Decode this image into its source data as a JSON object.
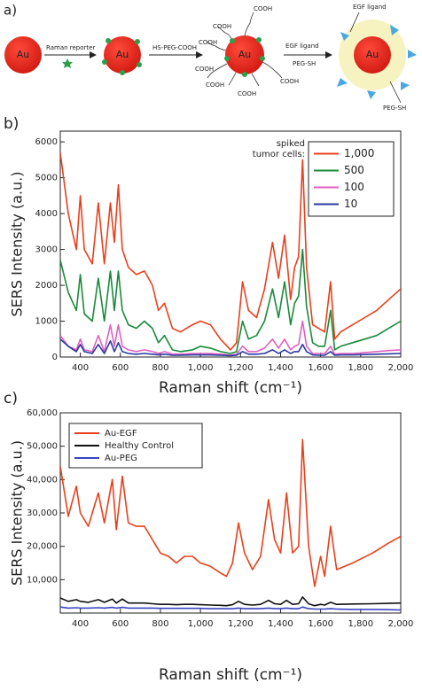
{
  "diagram": {
    "label": "a)",
    "core": "Au",
    "step1": "Raman reporter",
    "step2": "HS-PEG-COOH",
    "step3a": "EGF ligand",
    "step3b": "PEG-SH",
    "group": [
      "COOH",
      "COOH",
      "COOH",
      "COOH",
      "COOH",
      "COOH",
      "COOH"
    ],
    "ligand_label": "EGF ligand",
    "peg_label": "PEG-SH"
  },
  "chart_data": [
    {
      "type": "line",
      "label": "b)",
      "x_label": "Raman shift (cm⁻¹)",
      "y_label": "SERS Intensity (a.u.)",
      "annotation": [
        "spiked",
        "tumor cells:"
      ],
      "legend": "upper right",
      "xlim": [
        300,
        2000
      ],
      "ylim": [
        0,
        6300
      ],
      "xticks": [
        400,
        600,
        800,
        {
          "value": 1000,
          "label": "1,000"
        },
        {
          "value": 1200,
          "label": "1,200"
        },
        {
          "value": 1400,
          "label": "1,400"
        },
        {
          "value": 1600,
          "label": "1,600"
        },
        {
          "value": 1800,
          "label": "1,800"
        },
        {
          "value": 2000,
          "label": "2,000"
        }
      ],
      "yticks": [
        0,
        1000,
        2000,
        3000,
        4000,
        5000,
        6000
      ],
      "x": [
        300,
        340,
        380,
        400,
        420,
        460,
        490,
        520,
        550,
        570,
        590,
        610,
        640,
        680,
        720,
        760,
        790,
        820,
        860,
        900,
        960,
        1000,
        1050,
        1100,
        1150,
        1180,
        1210,
        1240,
        1280,
        1320,
        1360,
        1390,
        1420,
        1450,
        1470,
        1490,
        1510,
        1530,
        1560,
        1590,
        1620,
        1650,
        1670,
        1700,
        1760,
        1820,
        1880,
        1940,
        2000
      ],
      "series": [
        {
          "name": "1,000",
          "color": "#e8401c",
          "values": [
            5700,
            4000,
            3000,
            4500,
            3000,
            2600,
            4300,
            2600,
            4300,
            3200,
            4800,
            3000,
            2500,
            2300,
            2400,
            2000,
            1300,
            1500,
            800,
            700,
            900,
            1000,
            900,
            500,
            200,
            400,
            2100,
            1300,
            1100,
            1900,
            3200,
            2200,
            3400,
            1600,
            2500,
            2800,
            5500,
            2500,
            900,
            800,
            700,
            2100,
            500,
            700,
            900,
            1100,
            1300,
            1600,
            1900
          ]
        },
        {
          "name": "500",
          "color": "#1a8a3a",
          "values": [
            2700,
            1800,
            1300,
            2300,
            1200,
            1000,
            2200,
            1000,
            2400,
            1300,
            2400,
            1300,
            900,
            800,
            1000,
            800,
            400,
            600,
            200,
            150,
            200,
            300,
            250,
            150,
            100,
            150,
            1000,
            500,
            600,
            1000,
            1900,
            1100,
            2100,
            900,
            1500,
            1700,
            3000,
            1400,
            400,
            300,
            300,
            1300,
            200,
            300,
            400,
            500,
            600,
            800,
            1000
          ]
        },
        {
          "name": "100",
          "color": "#e060c0",
          "values": [
            600,
            300,
            200,
            500,
            200,
            150,
            600,
            150,
            900,
            300,
            900,
            300,
            200,
            150,
            200,
            150,
            100,
            150,
            80,
            80,
            100,
            100,
            100,
            80,
            50,
            80,
            300,
            150,
            150,
            250,
            500,
            250,
            500,
            200,
            300,
            350,
            1000,
            300,
            100,
            100,
            100,
            300,
            80,
            100,
            100,
            120,
            150,
            180,
            200
          ]
        },
        {
          "name": "10",
          "color": "#2a3aa0",
          "values": [
            500,
            300,
            150,
            350,
            150,
            100,
            350,
            100,
            450,
            150,
            400,
            150,
            100,
            80,
            100,
            80,
            60,
            80,
            50,
            50,
            60,
            60,
            60,
            50,
            40,
            50,
            150,
            80,
            80,
            100,
            200,
            100,
            200,
            100,
            150,
            150,
            350,
            150,
            60,
            50,
            50,
            150,
            50,
            60,
            60,
            70,
            80,
            90,
            100
          ]
        }
      ]
    },
    {
      "type": "line",
      "label": "c)",
      "x_label": "Raman shift (cm⁻¹)",
      "y_label": "SERS Intensity (a.u.)",
      "legend": "upper left",
      "xlim": [
        300,
        2000
      ],
      "ylim": [
        0,
        60000
      ],
      "xticks": [
        400,
        600,
        800,
        {
          "value": 1000,
          "label": "1,000"
        },
        {
          "value": 1200,
          "label": "1,200"
        },
        {
          "value": 1400,
          "label": "1,400"
        },
        {
          "value": 1600,
          "label": "1,600"
        },
        {
          "value": 1800,
          "label": "1,800"
        },
        {
          "value": 2000,
          "label": "2,000"
        }
      ],
      "yticks": [
        {
          "value": 10000,
          "label": "10,000"
        },
        {
          "value": 20000,
          "label": "20,000"
        },
        {
          "value": 30000,
          "label": "30,000"
        },
        {
          "value": 40000,
          "label": "40,000"
        },
        {
          "value": 50000,
          "label": "50,000"
        },
        {
          "value": 60000,
          "label": "60,000"
        }
      ],
      "x": [
        300,
        340,
        380,
        400,
        440,
        490,
        520,
        560,
        580,
        610,
        640,
        680,
        720,
        760,
        800,
        840,
        880,
        920,
        960,
        1000,
        1050,
        1100,
        1130,
        1160,
        1190,
        1220,
        1260,
        1300,
        1340,
        1370,
        1400,
        1430,
        1460,
        1490,
        1510,
        1540,
        1570,
        1600,
        1620,
        1650,
        1680,
        1760,
        1860,
        1940,
        2000
      ],
      "series": [
        {
          "name": "Au-EGF",
          "color": "#e8401c",
          "values": [
            44000,
            29000,
            38000,
            30000,
            26000,
            36000,
            27000,
            40000,
            25000,
            41000,
            27000,
            26000,
            26000,
            22000,
            18000,
            17000,
            15000,
            17000,
            17000,
            15000,
            14000,
            12000,
            11000,
            15000,
            27000,
            18000,
            13000,
            17000,
            34000,
            22000,
            18000,
            36000,
            18000,
            20000,
            52000,
            20000,
            8000,
            17000,
            11000,
            26000,
            13000,
            15000,
            18000,
            21000,
            23000
          ]
        },
        {
          "name": "Healthy Control",
          "color": "#111111",
          "values": [
            4500,
            3500,
            4000,
            3500,
            3200,
            4000,
            3200,
            4200,
            3000,
            4200,
            3000,
            3000,
            3000,
            2800,
            2600,
            2600,
            2500,
            2600,
            2600,
            2500,
            2400,
            2300,
            2200,
            2500,
            3500,
            2600,
            2400,
            2600,
            3800,
            2800,
            2600,
            3800,
            2600,
            2800,
            4800,
            2800,
            2200,
            2600,
            2400,
            3200,
            2600,
            2700,
            2800,
            2900,
            3000
          ]
        },
        {
          "name": "Au-PEG",
          "color": "#3a44c0",
          "values": [
            1800,
            1500,
            1600,
            1500,
            1500,
            1600,
            1500,
            1700,
            1500,
            1700,
            1500,
            1500,
            1500,
            1500,
            1400,
            1400,
            1400,
            1400,
            1400,
            1400,
            1300,
            1300,
            1300,
            1300,
            1500,
            1300,
            1300,
            1300,
            1500,
            1300,
            1300,
            1500,
            1300,
            1300,
            1800,
            1300,
            1200,
            1200,
            1200,
            1300,
            1200,
            1100,
            1100,
            1000,
            900
          ]
        }
      ]
    }
  ]
}
